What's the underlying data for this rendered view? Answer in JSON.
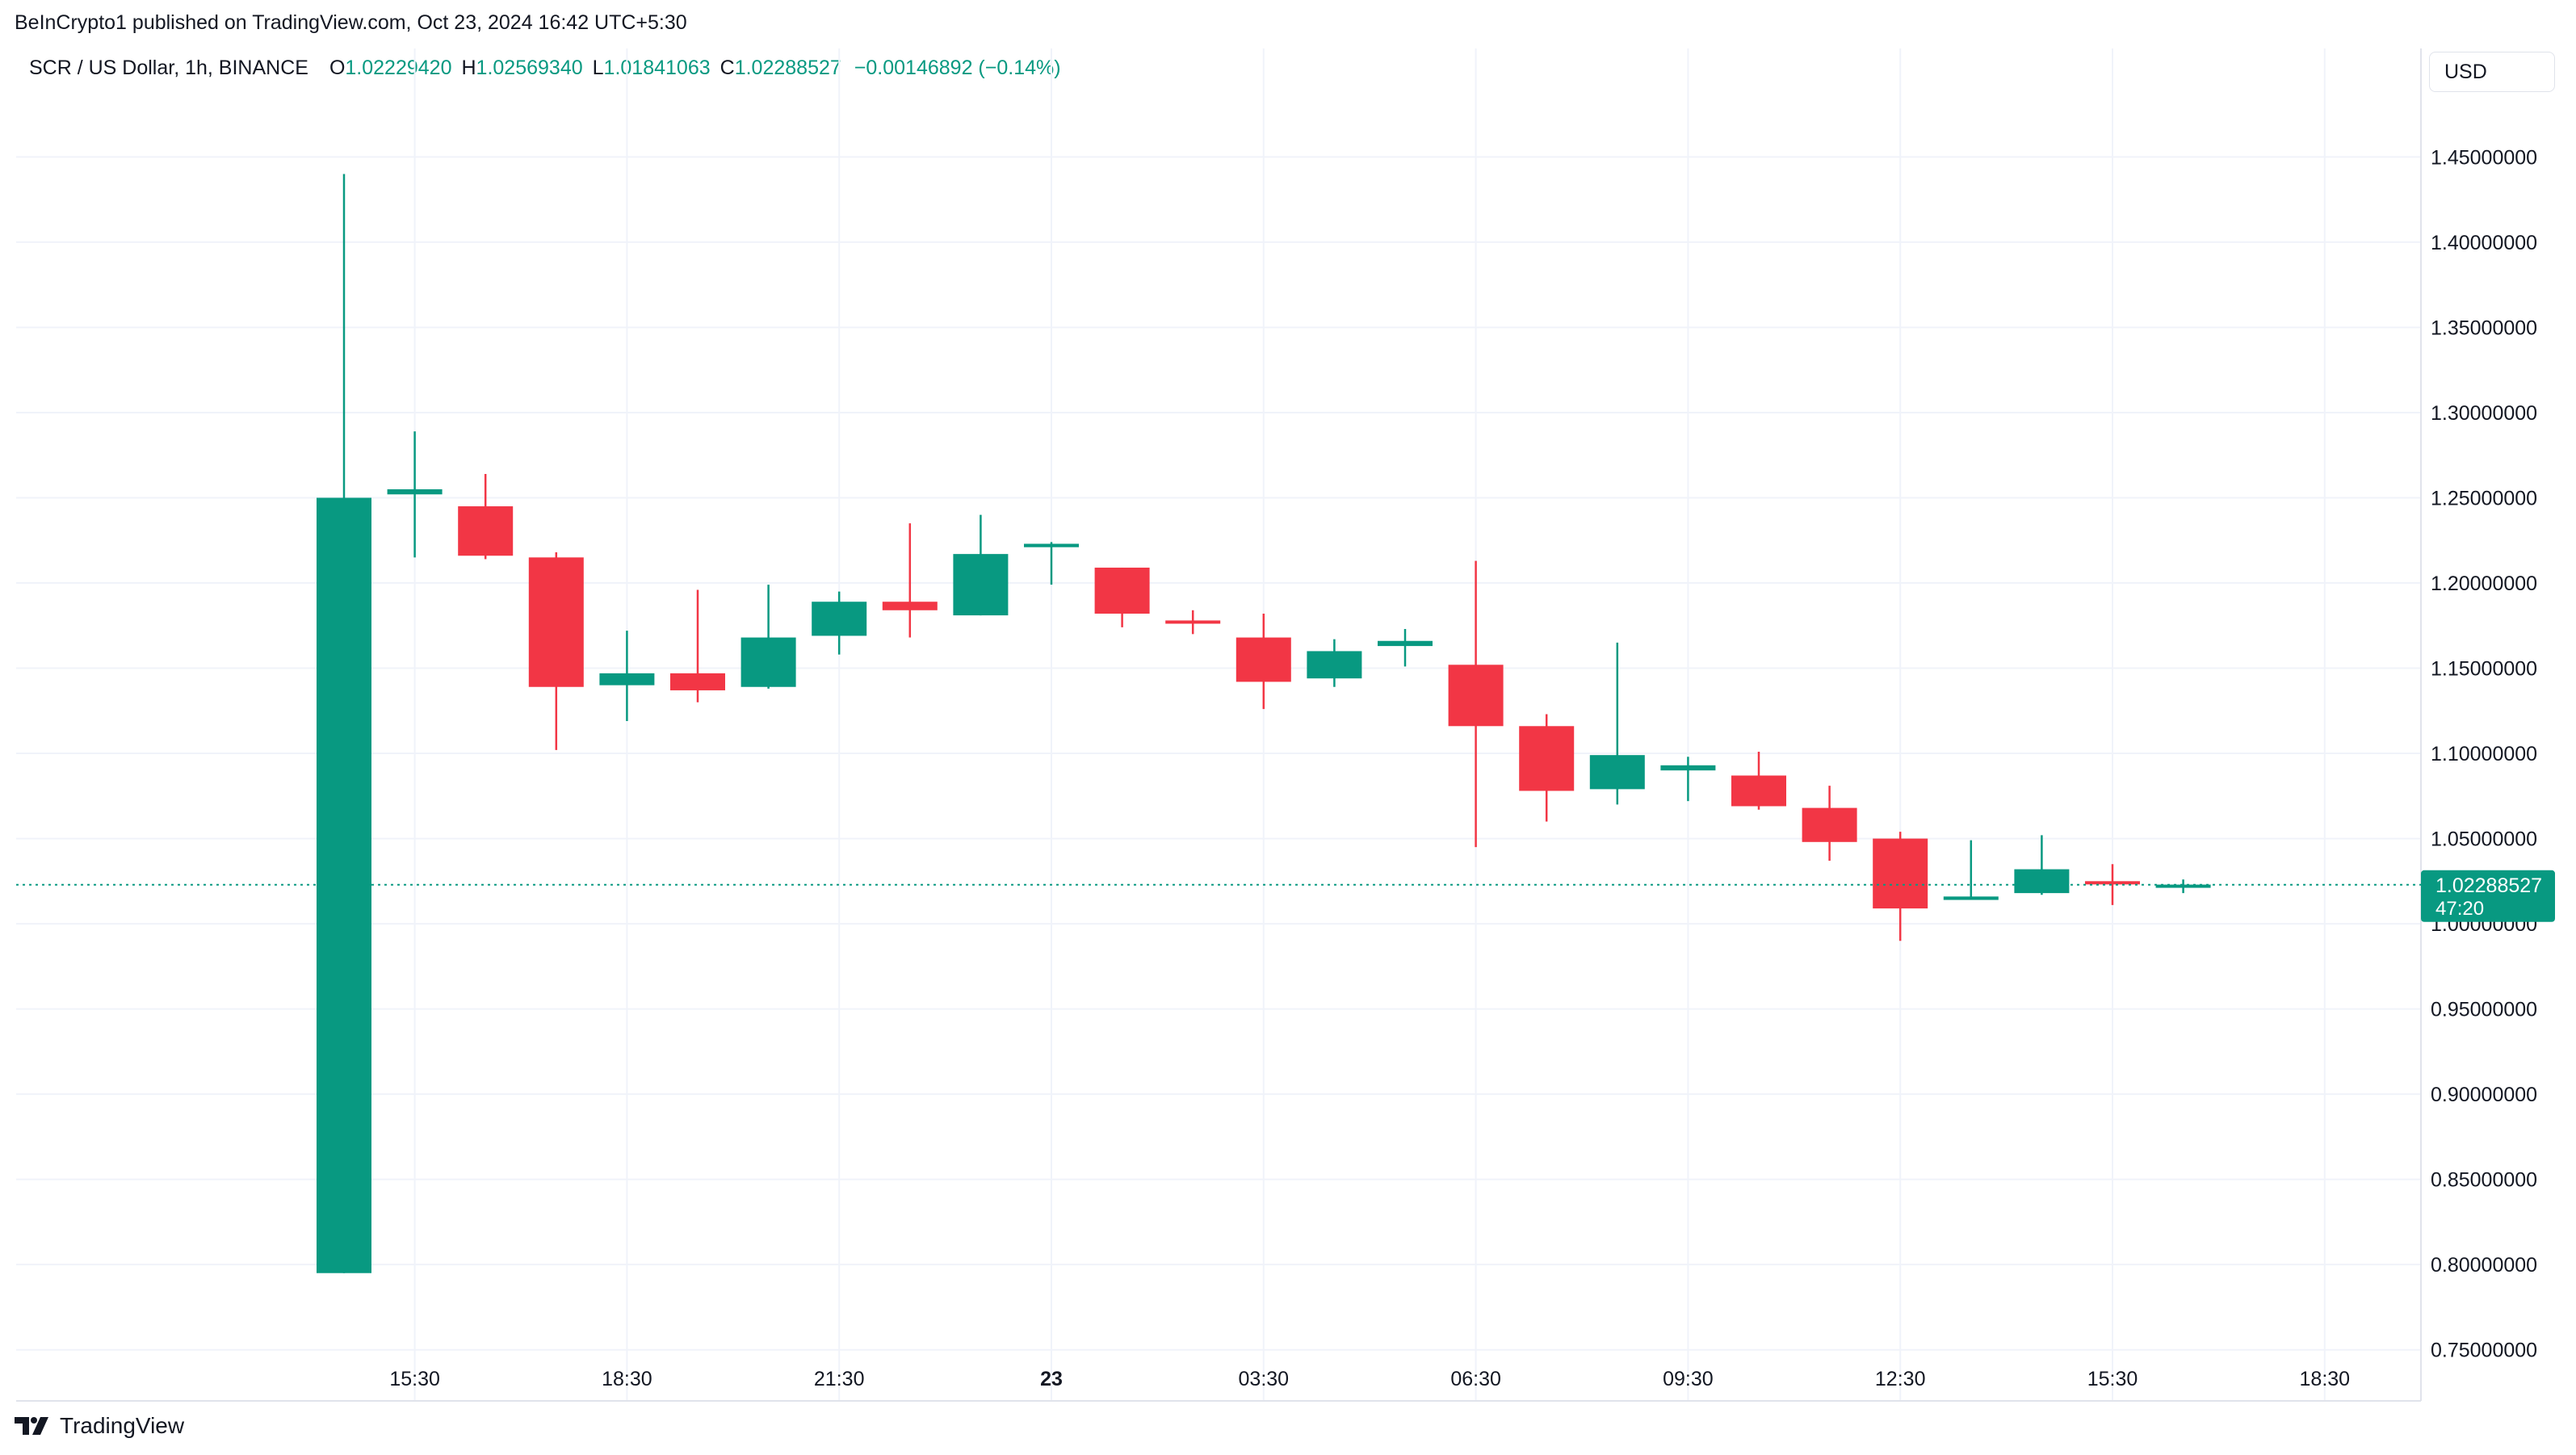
{
  "header": {
    "published": "BeInCrypto1 published on TradingView.com, Oct 23, 2024 16:42 UTC+5:30"
  },
  "legend": {
    "symbol": "SCR / US Dollar, 1h, BINANCE",
    "o_label": "O",
    "o_value": "1.02229420",
    "h_label": "H",
    "h_value": "1.02569340",
    "l_label": "L",
    "l_value": "1.01841063",
    "c_label": "C",
    "c_value": "1.02288527",
    "change": "−0.00146892 (−0.14%)"
  },
  "currency_button": "USD",
  "last_price": {
    "value": "1.02288527",
    "countdown": "47:20"
  },
  "footer": {
    "brand": "TradingView",
    "logo_icon": "tradingview-logo-icon"
  },
  "colors": {
    "up": "#089981",
    "down": "#f23645",
    "grid": "#f0f3fa",
    "axis_text": "#131722"
  },
  "chart_data": {
    "type": "candlestick",
    "title": "SCR / US Dollar, 1h, BINANCE",
    "ylim": [
      0.72,
      1.49
    ],
    "y_ticks": [
      "0.75000000",
      "0.80000000",
      "0.85000000",
      "0.90000000",
      "0.95000000",
      "1.00000000",
      "1.05000000",
      "1.10000000",
      "1.15000000",
      "1.20000000",
      "1.25000000",
      "1.30000000",
      "1.35000000",
      "1.40000000",
      "1.45000000"
    ],
    "x_ticks": [
      {
        "label": "15:30",
        "bar": 1
      },
      {
        "label": "18:30",
        "bar": 4
      },
      {
        "label": "21:30",
        "bar": 7
      },
      {
        "label": "23",
        "bar": 10,
        "bold": true
      },
      {
        "label": "03:30",
        "bar": 13
      },
      {
        "label": "06:30",
        "bar": 16
      },
      {
        "label": "09:30",
        "bar": 19
      },
      {
        "label": "12:30",
        "bar": 22
      },
      {
        "label": "15:30",
        "bar": 25
      },
      {
        "label": "18:30",
        "bar": 28
      }
    ],
    "last_close": 1.02288527,
    "candles": [
      {
        "o": 0.795,
        "h": 1.44,
        "l": 0.795,
        "c": 1.25
      },
      {
        "o": 1.252,
        "h": 1.289,
        "l": 1.215,
        "c": 1.255
      },
      {
        "o": 1.245,
        "h": 1.264,
        "l": 1.214,
        "c": 1.216
      },
      {
        "o": 1.215,
        "h": 1.218,
        "l": 1.102,
        "c": 1.139
      },
      {
        "o": 1.14,
        "h": 1.172,
        "l": 1.119,
        "c": 1.147
      },
      {
        "o": 1.147,
        "h": 1.196,
        "l": 1.13,
        "c": 1.137
      },
      {
        "o": 1.139,
        "h": 1.199,
        "l": 1.138,
        "c": 1.168
      },
      {
        "o": 1.169,
        "h": 1.195,
        "l": 1.158,
        "c": 1.189
      },
      {
        "o": 1.189,
        "h": 1.235,
        "l": 1.168,
        "c": 1.184
      },
      {
        "o": 1.181,
        "h": 1.24,
        "l": 1.181,
        "c": 1.217
      },
      {
        "o": 1.221,
        "h": 1.224,
        "l": 1.199,
        "c": 1.223
      },
      {
        "o": 1.209,
        "h": 1.209,
        "l": 1.174,
        "c": 1.182
      },
      {
        "o": 1.178,
        "h": 1.184,
        "l": 1.17,
        "c": 1.177
      },
      {
        "o": 1.168,
        "h": 1.182,
        "l": 1.126,
        "c": 1.142
      },
      {
        "o": 1.144,
        "h": 1.167,
        "l": 1.139,
        "c": 1.16
      },
      {
        "o": 1.163,
        "h": 1.173,
        "l": 1.151,
        "c": 1.166
      },
      {
        "o": 1.152,
        "h": 1.213,
        "l": 1.045,
        "c": 1.116
      },
      {
        "o": 1.116,
        "h": 1.123,
        "l": 1.06,
        "c": 1.078
      },
      {
        "o": 1.079,
        "h": 1.165,
        "l": 1.07,
        "c": 1.099
      },
      {
        "o": 1.09,
        "h": 1.098,
        "l": 1.072,
        "c": 1.093
      },
      {
        "o": 1.087,
        "h": 1.101,
        "l": 1.067,
        "c": 1.069
      },
      {
        "o": 1.068,
        "h": 1.081,
        "l": 1.037,
        "c": 1.048
      },
      {
        "o": 1.05,
        "h": 1.054,
        "l": 0.99,
        "c": 1.009
      },
      {
        "o": 1.014,
        "h": 1.049,
        "l": 1.014,
        "c": 1.016
      },
      {
        "o": 1.018,
        "h": 1.052,
        "l": 1.017,
        "c": 1.032
      },
      {
        "o": 1.025,
        "h": 1.035,
        "l": 1.011,
        "c": 1.024
      },
      {
        "o": 1.022,
        "h": 1.026,
        "l": 1.018,
        "c": 1.023
      }
    ]
  }
}
